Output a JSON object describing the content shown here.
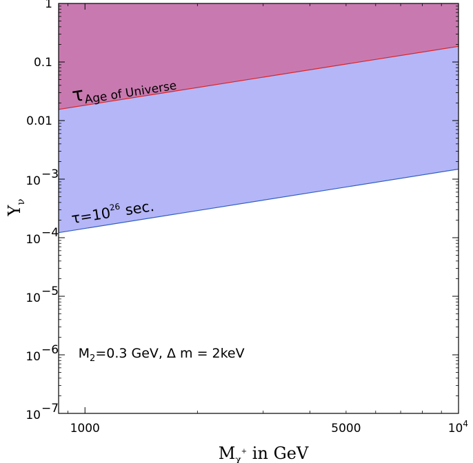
{
  "chart_data": {
    "type": "area",
    "xscale": "log",
    "yscale": "log",
    "xlim": [
      850,
      10000
    ],
    "ylim": [
      1e-07,
      1
    ],
    "xlabel": {
      "main": "M",
      "sub": "χ",
      "sup": "+",
      "rest": " in GeV"
    },
    "ylabel": {
      "main": "Y",
      "sub": "ν"
    },
    "x_ticks": [
      {
        "value": 1000,
        "label": "1000"
      },
      {
        "value": 5000,
        "label": "5000"
      },
      {
        "value": 10000,
        "base": "10",
        "exp": "4"
      }
    ],
    "y_ticks": [
      {
        "value": 1,
        "label": "1"
      },
      {
        "value": 0.1,
        "label": "0.1"
      },
      {
        "value": 0.01,
        "label": "0.01"
      },
      {
        "value": 0.001,
        "base": "10",
        "exp": "−3"
      },
      {
        "value": 0.0001,
        "base": "10",
        "exp": "−4"
      },
      {
        "value": 1e-05,
        "base": "10",
        "exp": "−5"
      },
      {
        "value": 1e-06,
        "base": "10",
        "exp": "−6"
      },
      {
        "value": 1e-07,
        "base": "10",
        "exp": "−7"
      }
    ],
    "series": [
      {
        "x": [
          850,
          10000
        ],
        "y": [
          0.0155,
          0.185
        ],
        "color": "#dd2222",
        "fill": "#c87ab0"
      },
      {
        "x": [
          850,
          10000
        ],
        "y": [
          0.000122,
          0.00148
        ],
        "color": "#2f5fbf",
        "fill": "#b4b6f8"
      }
    ],
    "annotations": [
      {
        "symbol": "τ",
        "subscript": "Age of Universe",
        "x": 930,
        "y": 0.0208,
        "color": "#7a1550"
      },
      {
        "symbol": "τ=10",
        "sup": "26",
        "rest": " sec.",
        "x": 925,
        "y": 0.000174,
        "color": "#1c1c7a"
      }
    ],
    "note": {
      "M": "M",
      "sub": "2",
      "rest": "=0.3 GeV, Δ m = 2keV",
      "x": 960,
      "y": 9e-07
    }
  }
}
